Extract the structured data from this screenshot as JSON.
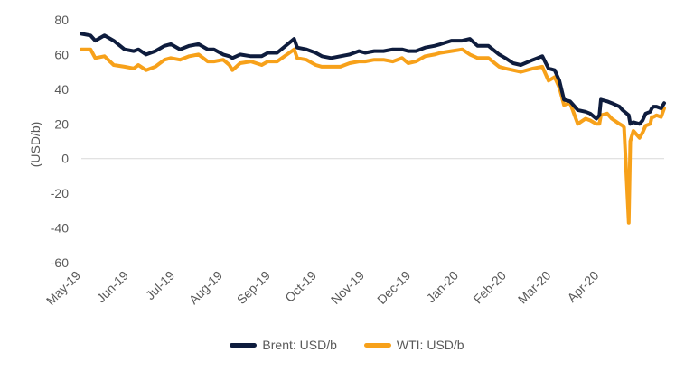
{
  "chart_data": {
    "type": "line",
    "title": "",
    "xlabel": "",
    "ylabel": "(USD/b)",
    "ylim": [
      -60,
      80
    ],
    "yticks": [
      80,
      60,
      40,
      20,
      0,
      -20,
      -40,
      -60
    ],
    "ytick_labels": [
      "80",
      "60",
      "40",
      "20",
      "0",
      "-20",
      "-40",
      "-60"
    ],
    "x_range": [
      "2019-05-01",
      "2020-05-13"
    ],
    "xtick_dates": [
      "2019-05-01",
      "2019-06-01",
      "2019-07-01",
      "2019-08-01",
      "2019-09-01",
      "2019-10-01",
      "2019-11-01",
      "2019-12-01",
      "2020-01-01",
      "2020-02-01",
      "2020-03-01",
      "2020-04-01"
    ],
    "xtick_labels": [
      "May-19",
      "Jun-19",
      "Jul-19",
      "Aug-19",
      "Sep-19",
      "Oct-19",
      "Nov-19",
      "Dec-19",
      "Jan-20",
      "Feb-20",
      "Mar-20",
      "Apr-20"
    ],
    "grid": false,
    "legend_position": "bottom",
    "series": [
      {
        "name": "Brent: USD/b",
        "color": "#0e1c3d",
        "points": [
          [
            "2019-05-01",
            72
          ],
          [
            "2019-05-07",
            71
          ],
          [
            "2019-05-10",
            68
          ],
          [
            "2019-05-16",
            71
          ],
          [
            "2019-05-22",
            68
          ],
          [
            "2019-05-29",
            63
          ],
          [
            "2019-06-04",
            62
          ],
          [
            "2019-06-07",
            63
          ],
          [
            "2019-06-12",
            60
          ],
          [
            "2019-06-18",
            62
          ],
          [
            "2019-06-24",
            65
          ],
          [
            "2019-06-28",
            66
          ],
          [
            "2019-07-04",
            63
          ],
          [
            "2019-07-10",
            65
          ],
          [
            "2019-07-16",
            66
          ],
          [
            "2019-07-22",
            63
          ],
          [
            "2019-07-26",
            63
          ],
          [
            "2019-08-01",
            60
          ],
          [
            "2019-08-05",
            59
          ],
          [
            "2019-08-07",
            58
          ],
          [
            "2019-08-12",
            60
          ],
          [
            "2019-08-19",
            59
          ],
          [
            "2019-08-26",
            59
          ],
          [
            "2019-08-30",
            61
          ],
          [
            "2019-09-05",
            61
          ],
          [
            "2019-09-16",
            69
          ],
          [
            "2019-09-18",
            64
          ],
          [
            "2019-09-24",
            63
          ],
          [
            "2019-09-30",
            61
          ],
          [
            "2019-10-04",
            59
          ],
          [
            "2019-10-10",
            58
          ],
          [
            "2019-10-16",
            59
          ],
          [
            "2019-10-22",
            60
          ],
          [
            "2019-10-28",
            62
          ],
          [
            "2019-11-01",
            61
          ],
          [
            "2019-11-07",
            62
          ],
          [
            "2019-11-13",
            62
          ],
          [
            "2019-11-19",
            63
          ],
          [
            "2019-11-25",
            63
          ],
          [
            "2019-11-29",
            62
          ],
          [
            "2019-12-04",
            62
          ],
          [
            "2019-12-10",
            64
          ],
          [
            "2019-12-16",
            65
          ],
          [
            "2019-12-20",
            66
          ],
          [
            "2019-12-27",
            68
          ],
          [
            "2020-01-03",
            68
          ],
          [
            "2020-01-08",
            69
          ],
          [
            "2020-01-13",
            65
          ],
          [
            "2020-01-20",
            65
          ],
          [
            "2020-01-27",
            60
          ],
          [
            "2020-01-31",
            58
          ],
          [
            "2020-02-05",
            55
          ],
          [
            "2020-02-10",
            54
          ],
          [
            "2020-02-18",
            57
          ],
          [
            "2020-02-24",
            59
          ],
          [
            "2020-02-28",
            52
          ],
          [
            "2020-03-03",
            51
          ],
          [
            "2020-03-06",
            45
          ],
          [
            "2020-03-09",
            34
          ],
          [
            "2020-03-13",
            33
          ],
          [
            "2020-03-18",
            28
          ],
          [
            "2020-03-23",
            27
          ],
          [
            "2020-03-26",
            26
          ],
          [
            "2020-03-30",
            23
          ],
          [
            "2020-04-01",
            25
          ],
          [
            "2020-04-02",
            34
          ],
          [
            "2020-04-06",
            33
          ],
          [
            "2020-04-09",
            32
          ],
          [
            "2020-04-14",
            30
          ],
          [
            "2020-04-16",
            28
          ],
          [
            "2020-04-20",
            25
          ],
          [
            "2020-04-21",
            20
          ],
          [
            "2020-04-23",
            21
          ],
          [
            "2020-04-27",
            20
          ],
          [
            "2020-04-29",
            22
          ],
          [
            "2020-05-01",
            26
          ],
          [
            "2020-05-04",
            27
          ],
          [
            "2020-05-05",
            29
          ],
          [
            "2020-05-06",
            30
          ],
          [
            "2020-05-08",
            30
          ],
          [
            "2020-05-11",
            29
          ],
          [
            "2020-05-13",
            32
          ]
        ]
      },
      {
        "name": "WTI: USD/b",
        "color": "#f7a11a",
        "points": [
          [
            "2019-05-01",
            63
          ],
          [
            "2019-05-07",
            63
          ],
          [
            "2019-05-10",
            58
          ],
          [
            "2019-05-16",
            59
          ],
          [
            "2019-05-22",
            54
          ],
          [
            "2019-05-29",
            53
          ],
          [
            "2019-06-04",
            52
          ],
          [
            "2019-06-07",
            54
          ],
          [
            "2019-06-12",
            51
          ],
          [
            "2019-06-18",
            53
          ],
          [
            "2019-06-24",
            57
          ],
          [
            "2019-06-28",
            58
          ],
          [
            "2019-07-04",
            57
          ],
          [
            "2019-07-10",
            59
          ],
          [
            "2019-07-16",
            60
          ],
          [
            "2019-07-22",
            56
          ],
          [
            "2019-07-26",
            56
          ],
          [
            "2019-08-01",
            57
          ],
          [
            "2019-08-05",
            54
          ],
          [
            "2019-08-07",
            51
          ],
          [
            "2019-08-12",
            55
          ],
          [
            "2019-08-19",
            56
          ],
          [
            "2019-08-26",
            54
          ],
          [
            "2019-08-30",
            56
          ],
          [
            "2019-09-05",
            56
          ],
          [
            "2019-09-16",
            63
          ],
          [
            "2019-09-18",
            58
          ],
          [
            "2019-09-24",
            57
          ],
          [
            "2019-09-30",
            54
          ],
          [
            "2019-10-04",
            53
          ],
          [
            "2019-10-10",
            53
          ],
          [
            "2019-10-16",
            53
          ],
          [
            "2019-10-22",
            55
          ],
          [
            "2019-10-28",
            56
          ],
          [
            "2019-11-01",
            56
          ],
          [
            "2019-11-07",
            57
          ],
          [
            "2019-11-13",
            57
          ],
          [
            "2019-11-19",
            56
          ],
          [
            "2019-11-25",
            58
          ],
          [
            "2019-11-29",
            55
          ],
          [
            "2019-12-04",
            56
          ],
          [
            "2019-12-10",
            59
          ],
          [
            "2019-12-16",
            60
          ],
          [
            "2019-12-20",
            61
          ],
          [
            "2019-12-27",
            62
          ],
          [
            "2020-01-03",
            63
          ],
          [
            "2020-01-08",
            60
          ],
          [
            "2020-01-13",
            58
          ],
          [
            "2020-01-20",
            58
          ],
          [
            "2020-01-27",
            53
          ],
          [
            "2020-01-31",
            52
          ],
          [
            "2020-02-05",
            51
          ],
          [
            "2020-02-10",
            50
          ],
          [
            "2020-02-18",
            52
          ],
          [
            "2020-02-24",
            53
          ],
          [
            "2020-02-28",
            45
          ],
          [
            "2020-03-03",
            47
          ],
          [
            "2020-03-06",
            41
          ],
          [
            "2020-03-09",
            31
          ],
          [
            "2020-03-13",
            32
          ],
          [
            "2020-03-18",
            20
          ],
          [
            "2020-03-23",
            23
          ],
          [
            "2020-03-26",
            22
          ],
          [
            "2020-03-30",
            20
          ],
          [
            "2020-04-01",
            20
          ],
          [
            "2020-04-02",
            25
          ],
          [
            "2020-04-06",
            26
          ],
          [
            "2020-04-09",
            23
          ],
          [
            "2020-04-14",
            20
          ],
          [
            "2020-04-16",
            19
          ],
          [
            "2020-04-17",
            18
          ],
          [
            "2020-04-20",
            -37
          ],
          [
            "2020-04-21",
            10
          ],
          [
            "2020-04-23",
            16
          ],
          [
            "2020-04-27",
            12
          ],
          [
            "2020-04-29",
            15
          ],
          [
            "2020-05-01",
            19
          ],
          [
            "2020-05-04",
            20
          ],
          [
            "2020-05-05",
            24
          ],
          [
            "2020-05-06",
            24
          ],
          [
            "2020-05-08",
            25
          ],
          [
            "2020-05-11",
            24
          ],
          [
            "2020-05-13",
            29
          ]
        ]
      }
    ]
  }
}
